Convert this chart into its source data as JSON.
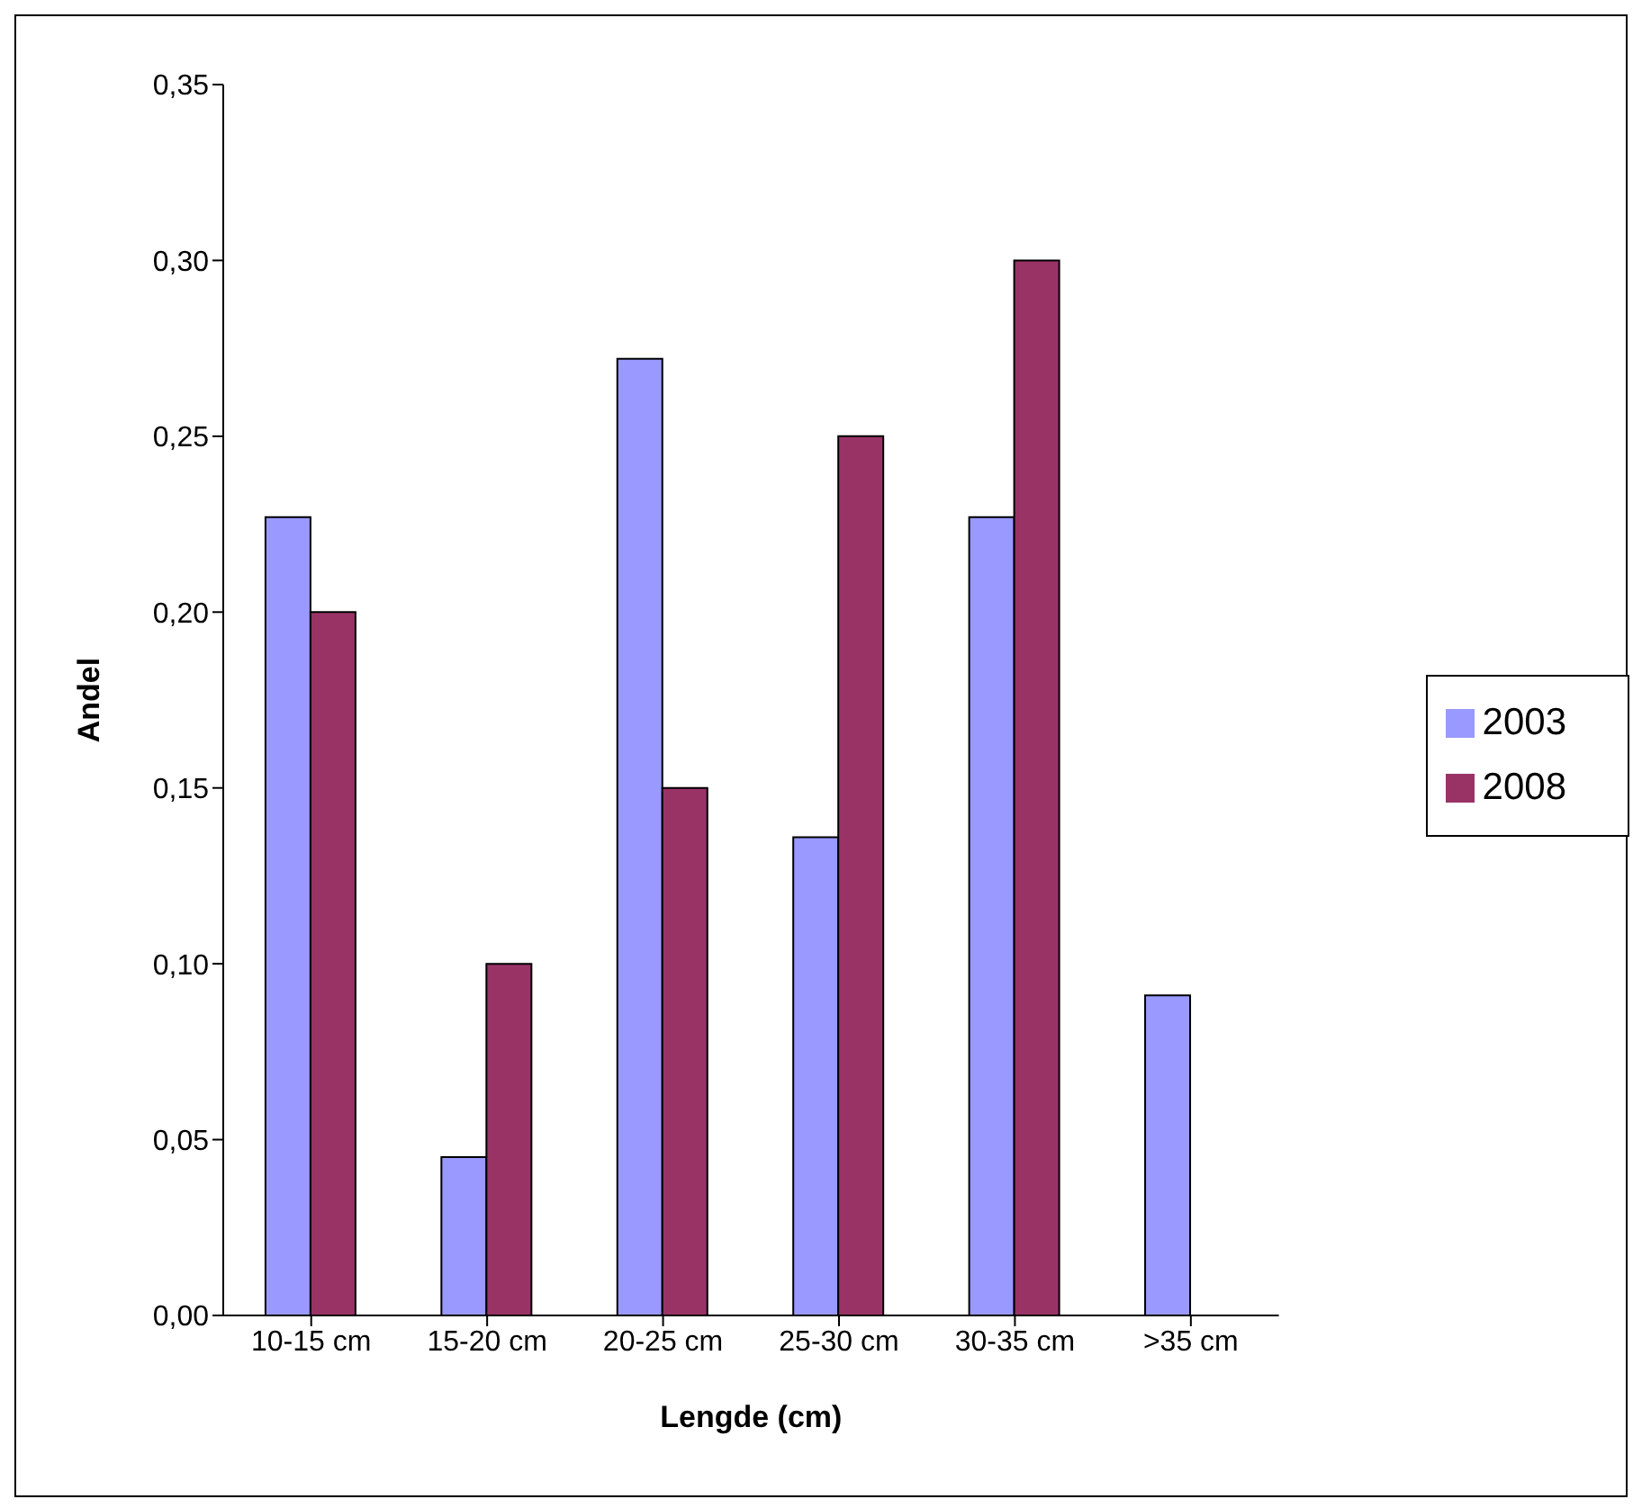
{
  "chart_data": {
    "type": "bar",
    "xlabel": "Lengde (cm)",
    "ylabel": "Andel",
    "categories": [
      "10-15 cm",
      "15-20 cm",
      "20-25 cm",
      "25-30 cm",
      "30-35 cm",
      ">35 cm"
    ],
    "series": [
      {
        "name": "2003",
        "color": "#9999ff",
        "values": [
          0.227,
          0.045,
          0.272,
          0.136,
          0.227,
          0.091
        ]
      },
      {
        "name": "2008",
        "color": "#993366",
        "values": [
          0.2,
          0.1,
          0.15,
          0.25,
          0.3,
          null
        ]
      }
    ],
    "ylim": [
      0,
      0.35
    ],
    "yticks": [
      {
        "value": 0,
        "label": "0,00"
      },
      {
        "value": 0.05,
        "label": "0,05"
      },
      {
        "value": 0.1,
        "label": "0,10"
      },
      {
        "value": 0.15,
        "label": "0,15"
      },
      {
        "value": 0.2,
        "label": "0,20"
      },
      {
        "value": 0.25,
        "label": "0,25"
      },
      {
        "value": 0.3,
        "label": "0,30"
      },
      {
        "value": 0.35,
        "label": "0,35"
      }
    ],
    "grid": false,
    "legend": "right"
  }
}
